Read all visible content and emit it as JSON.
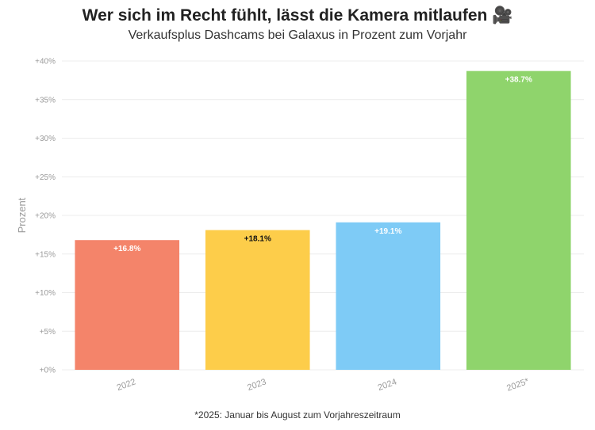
{
  "chart_data": {
    "type": "bar",
    "title": "Wer sich im Recht fühlt, lässt die Kamera mitlaufen 🎥",
    "subtitle": "Verkaufsplus Dashcams bei Galaxus in Prozent zum Vorjahr",
    "ylabel": "Prozent",
    "xlabel": "",
    "categories": [
      "2022",
      "2023",
      "2024",
      "2025*"
    ],
    "values": [
      16.8,
      18.1,
      19.1,
      38.7
    ],
    "value_labels": [
      "+16.8%",
      "+18.1%",
      "+19.1%",
      "+38.7%"
    ],
    "ylim": [
      0,
      40
    ],
    "yticks": [
      0,
      5,
      10,
      15,
      20,
      25,
      30,
      35,
      40
    ],
    "ytick_labels": [
      "+0%",
      "+5%",
      "+10%",
      "+15%",
      "+20%",
      "+25%",
      "+30%",
      "+35%",
      "+40%"
    ],
    "colors": [
      "#f4846a",
      "#fdcd4a",
      "#7ecbf6",
      "#8fd46c"
    ],
    "label_colors": [
      "#ffffff",
      "#111111",
      "#ffffff",
      "#ffffff"
    ],
    "grid": true,
    "legend": "none",
    "footnote": "*2025: Januar bis August zum Vorjahreszeitraum"
  }
}
